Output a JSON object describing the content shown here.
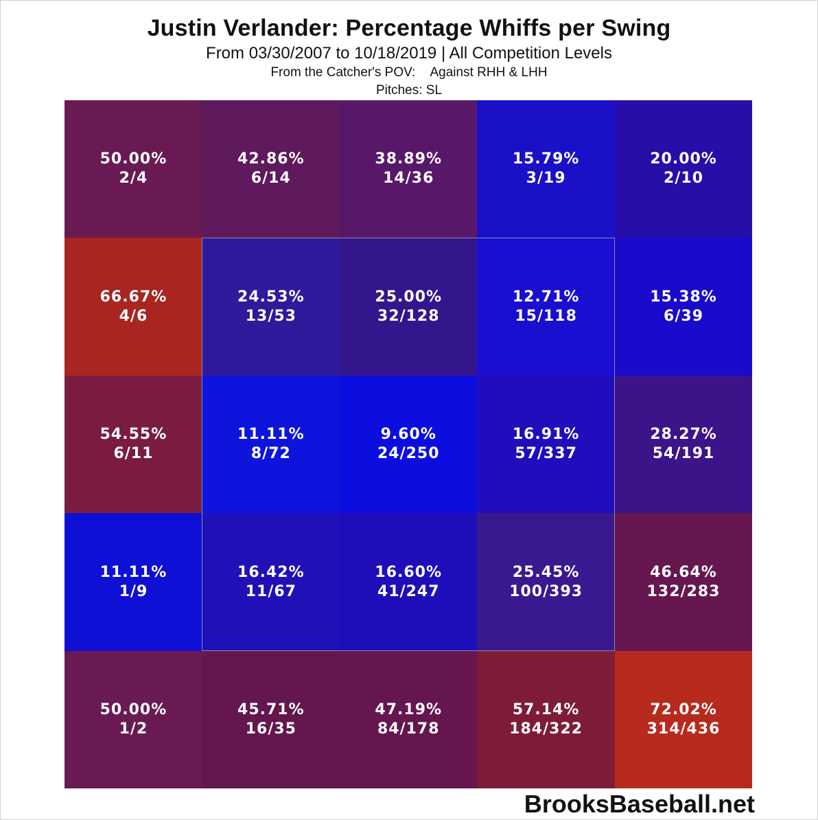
{
  "header": {
    "title": "Justin Verlander: Percentage Whiffs per Swing",
    "subtitle": "From 03/30/2007 to 10/18/2019 | All Competition Levels",
    "pov": "From the Catcher's POV:",
    "handedness": "Against RHH & LHH",
    "pitches": "Pitches:  SL"
  },
  "footer": {
    "brand": "BrooksBaseball.net"
  },
  "chart_data": {
    "type": "heatmap",
    "title": "Justin Verlander: Percentage Whiffs per Swing",
    "rows": 5,
    "cols": 5,
    "cells": [
      [
        {
          "pct": "50.00%",
          "count": "2/4",
          "color": "#6a1a52"
        },
        {
          "pct": "42.86%",
          "count": "6/14",
          "color": "#5e1a5c"
        },
        {
          "pct": "38.89%",
          "count": "14/36",
          "color": "#58186a"
        },
        {
          "pct": "15.79%",
          "count": "3/19",
          "color": "#1a10c8"
        },
        {
          "pct": "20.00%",
          "count": "2/10",
          "color": "#280ea8"
        }
      ],
      [
        {
          "pct": "66.67%",
          "count": "4/6",
          "color": "#a82520"
        },
        {
          "pct": "24.53%",
          "count": "13/53",
          "color": "#2e1a9a"
        },
        {
          "pct": "25.00%",
          "count": "32/128",
          "color": "#33168c"
        },
        {
          "pct": "12.71%",
          "count": "15/118",
          "color": "#1a0ed0"
        },
        {
          "pct": "15.38%",
          "count": "6/39",
          "color": "#1a0acc"
        }
      ],
      [
        {
          "pct": "54.55%",
          "count": "6/11",
          "color": "#7a1c42"
        },
        {
          "pct": "11.11%",
          "count": "8/72",
          "color": "#0e14dc"
        },
        {
          "pct": "9.60%",
          "count": "24/250",
          "color": "#0c0ee0"
        },
        {
          "pct": "16.91%",
          "count": "57/337",
          "color": "#200ebc"
        },
        {
          "pct": "28.27%",
          "count": "54/191",
          "color": "#3c148a"
        }
      ],
      [
        {
          "pct": "11.11%",
          "count": "1/9",
          "color": "#0e10d6"
        },
        {
          "pct": "16.42%",
          "count": "11/67",
          "color": "#2010b8"
        },
        {
          "pct": "16.60%",
          "count": "41/247",
          "color": "#1e0eba"
        },
        {
          "pct": "25.45%",
          "count": "100/393",
          "color": "#3a1890"
        },
        {
          "pct": "46.64%",
          "count": "132/283",
          "color": "#661750"
        }
      ],
      [
        {
          "pct": "50.00%",
          "count": "1/2",
          "color": "#6a1a52"
        },
        {
          "pct": "45.71%",
          "count": "16/35",
          "color": "#64164e"
        },
        {
          "pct": "47.19%",
          "count": "84/178",
          "color": "#66164e"
        },
        {
          "pct": "57.14%",
          "count": "184/322",
          "color": "#7e1c38"
        },
        {
          "pct": "72.02%",
          "count": "314/436",
          "color": "#b82a1e"
        }
      ]
    ],
    "strike_zone": {
      "rows": [
        1,
        3
      ],
      "cols": [
        1,
        3
      ]
    }
  }
}
